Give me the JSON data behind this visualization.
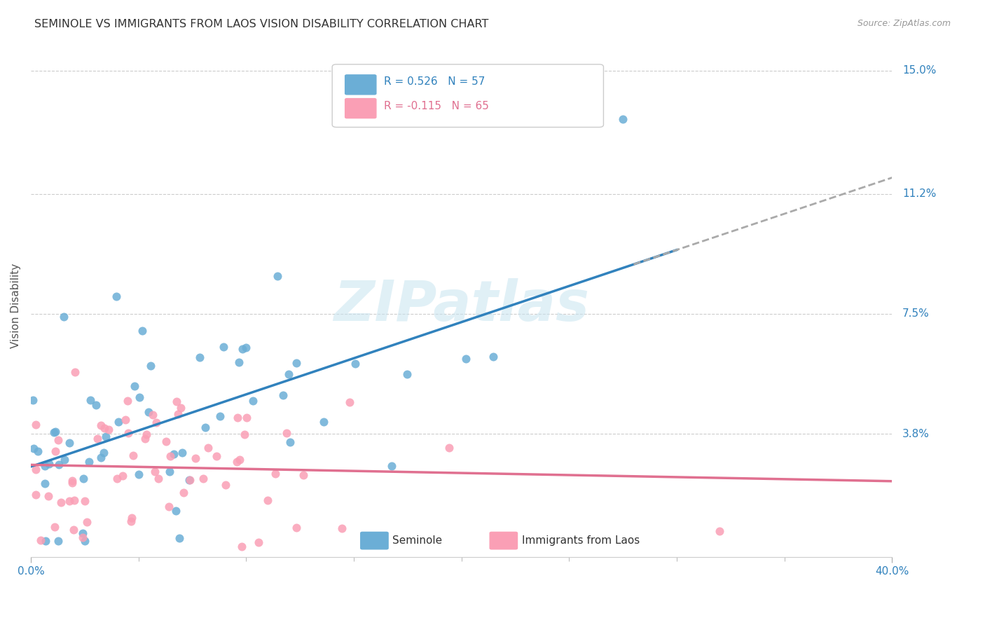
{
  "title": "SEMINOLE VS IMMIGRANTS FROM LAOS VISION DISABILITY CORRELATION CHART",
  "source": "Source: ZipAtlas.com",
  "ylabel": "Vision Disability",
  "xlim": [
    0.0,
    0.4
  ],
  "ylim": [
    0.0,
    0.155
  ],
  "legend1_label": "R = 0.526   N = 57",
  "legend2_label": "R = -0.115   N = 65",
  "legend_bottom_label1": "Seminole",
  "legend_bottom_label2": "Immigrants from Laos",
  "color_blue": "#6baed6",
  "color_pink": "#fa9fb5",
  "color_blue_line": "#3182bd",
  "color_pink_line": "#e07090",
  "color_blue_text": "#3182bd",
  "watermark": "ZIPatlas",
  "ytick_vals": [
    0.038,
    0.075,
    0.112,
    0.15
  ],
  "ytick_labels": [
    "3.8%",
    "7.5%",
    "11.2%",
    "15.0%"
  ]
}
